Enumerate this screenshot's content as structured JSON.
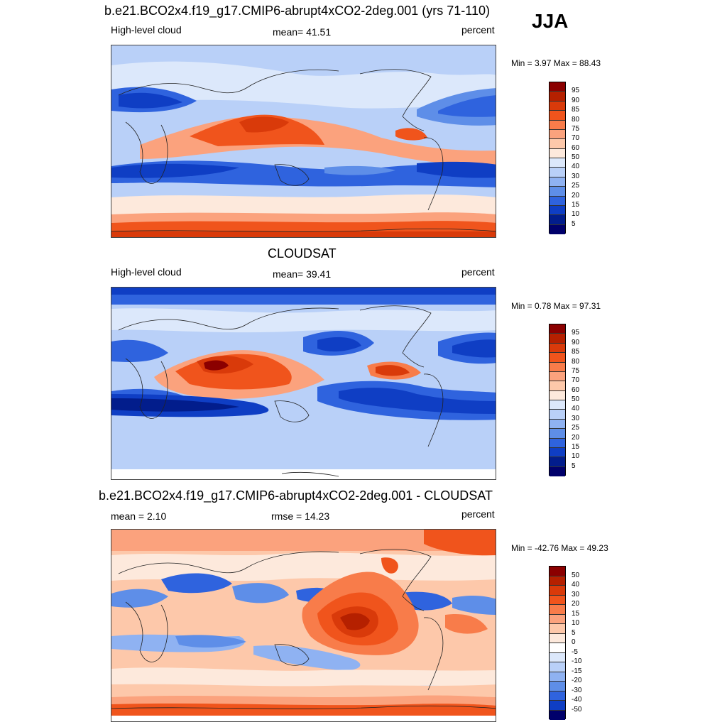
{
  "season": "JJA",
  "panels": [
    {
      "title": "b.e21.BCO2x4.f19_g17.CMIP6-abrupt4xCO2-2deg.001 (yrs 71-110)",
      "left_label": "High-level cloud",
      "center_label": "mean=  41.51",
      "right_label": "percent",
      "minmax": "Min =   3.97 Max =  88.43"
    },
    {
      "title": "CLOUDSAT",
      "left_label": "High-level cloud",
      "center_label": "mean=  39.41",
      "right_label": "percent",
      "minmax": "Min =   0.78 Max =  97.31"
    },
    {
      "title": "b.e21.BCO2x4.f19_g17.CMIP6-abrupt4xCO2-2deg.001 - CLOUDSAT",
      "left_label": "mean =   2.10",
      "center_label": "rmse =  14.23",
      "right_label": "percent",
      "minmax": "Min = -42.76 Max =  49.23"
    }
  ],
  "colorbar_levels": [
    "95",
    "90",
    "85",
    "80",
    "75",
    "70",
    "60",
    "50",
    "40",
    "30",
    "25",
    "20",
    "15",
    "10",
    "5"
  ],
  "diff_levels": [
    "50",
    "40",
    "30",
    "20",
    "15",
    "10",
    "5",
    "0",
    "-5",
    "-10",
    "-15",
    "-20",
    "-30",
    "-40",
    "-50"
  ],
  "palette": [
    "#8b0000",
    "#b52000",
    "#d93a0a",
    "#f0541c",
    "#f87c4a",
    "#fba27d",
    "#fdc8aa",
    "#fde9dc",
    "#dce8fb",
    "#b9d0f8",
    "#8fb2f2",
    "#5e8ee8",
    "#2f63de",
    "#0f3ec4",
    "#021d8c",
    "#00006b"
  ],
  "diff_palette": [
    "#8b0000",
    "#b52000",
    "#d93a0a",
    "#f0541c",
    "#f87c4a",
    "#fba27d",
    "#fdc8aa",
    "#fde9dc",
    "#ffffff",
    "#dce8fb",
    "#b9d0f8",
    "#8fb2f2",
    "#5e8ee8",
    "#2f63de",
    "#0f3ec4",
    "#00006b"
  ]
}
